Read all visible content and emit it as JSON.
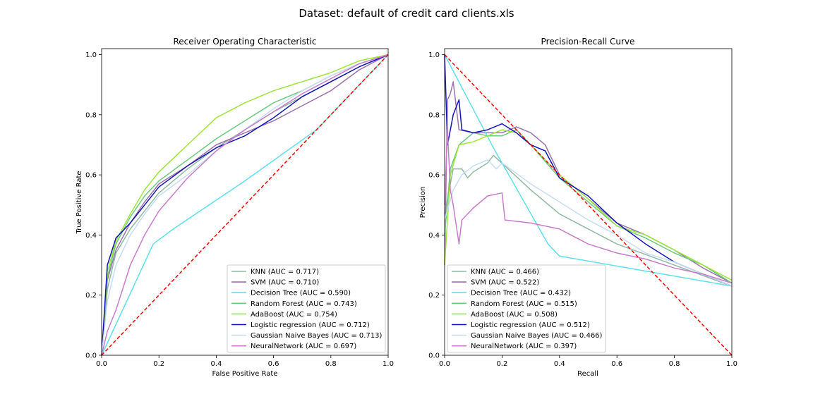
{
  "figure_title": "Dataset: default of credit card clients.xls",
  "colors": {
    "KNN": "#8fb9a2",
    "SVM": "#9a73ad",
    "Decision Tree": "#5ee0ec",
    "Random Forest": "#6cc97e",
    "AdaBoost": "#9fe43a",
    "Logistic regression": "#1414b5",
    "Gaussian Naive Bayes": "#c7dcf2",
    "NeuralNetwork": "#c87ccb",
    "reference": "#ff0000"
  },
  "chart_data": [
    {
      "type": "line",
      "title": "Receiver Operating Characteristic",
      "xlabel": "False Positive Rate",
      "ylabel": "True Positive Rate",
      "xlim": [
        0,
        1
      ],
      "ylim": [
        0,
        1.02
      ],
      "xticks": [
        "0.0",
        "0.2",
        "0.4",
        "0.6",
        "0.8",
        "1.0"
      ],
      "yticks": [
        "0.0",
        "0.2",
        "0.4",
        "0.6",
        "0.8",
        "1.0"
      ],
      "grid": false,
      "legend_position": "lower-right",
      "reference_line": [
        [
          0,
          0
        ],
        [
          1,
          1
        ]
      ],
      "series": [
        {
          "name": "KNN",
          "auc_label": "KNN (AUC = 0.717)",
          "points": [
            [
              0,
              0
            ],
            [
              0.02,
              0.22
            ],
            [
              0.05,
              0.34
            ],
            [
              0.1,
              0.42
            ],
            [
              0.15,
              0.48
            ],
            [
              0.2,
              0.54
            ],
            [
              0.3,
              0.62
            ],
            [
              0.4,
              0.69
            ],
            [
              0.5,
              0.75
            ],
            [
              0.6,
              0.81
            ],
            [
              0.7,
              0.86
            ],
            [
              0.8,
              0.91
            ],
            [
              0.9,
              0.96
            ],
            [
              1,
              1
            ]
          ]
        },
        {
          "name": "SVM",
          "auc_label": "SVM (AUC = 0.710)",
          "points": [
            [
              0,
              0
            ],
            [
              0.02,
              0.25
            ],
            [
              0.05,
              0.35
            ],
            [
              0.1,
              0.44
            ],
            [
              0.15,
              0.51
            ],
            [
              0.2,
              0.57
            ],
            [
              0.3,
              0.63
            ],
            [
              0.4,
              0.7
            ],
            [
              0.5,
              0.74
            ],
            [
              0.6,
              0.78
            ],
            [
              0.7,
              0.83
            ],
            [
              0.8,
              0.88
            ],
            [
              0.9,
              0.95
            ],
            [
              1,
              1
            ]
          ]
        },
        {
          "name": "Decision Tree",
          "auc_label": "Decision Tree (AUC = 0.590)",
          "points": [
            [
              0,
              0
            ],
            [
              0.18,
              0.37
            ],
            [
              0.25,
              0.42
            ],
            [
              0.5,
              0.58
            ],
            [
              0.75,
              0.75
            ],
            [
              1,
              1
            ]
          ]
        },
        {
          "name": "Random Forest",
          "auc_label": "Random Forest (AUC = 0.743)",
          "points": [
            [
              0,
              0
            ],
            [
              0.02,
              0.26
            ],
            [
              0.05,
              0.37
            ],
            [
              0.1,
              0.46
            ],
            [
              0.15,
              0.53
            ],
            [
              0.2,
              0.58
            ],
            [
              0.3,
              0.65
            ],
            [
              0.4,
              0.72
            ],
            [
              0.5,
              0.78
            ],
            [
              0.6,
              0.84
            ],
            [
              0.7,
              0.88
            ],
            [
              0.8,
              0.93
            ],
            [
              0.9,
              0.97
            ],
            [
              1,
              1
            ]
          ]
        },
        {
          "name": "AdaBoost",
          "auc_label": "AdaBoost (AUC = 0.754)",
          "points": [
            [
              0,
              0
            ],
            [
              0.02,
              0.28
            ],
            [
              0.05,
              0.38
            ],
            [
              0.1,
              0.47
            ],
            [
              0.15,
              0.55
            ],
            [
              0.2,
              0.61
            ],
            [
              0.3,
              0.7
            ],
            [
              0.4,
              0.79
            ],
            [
              0.5,
              0.84
            ],
            [
              0.6,
              0.88
            ],
            [
              0.7,
              0.91
            ],
            [
              0.8,
              0.94
            ],
            [
              0.9,
              0.98
            ],
            [
              1,
              1
            ]
          ]
        },
        {
          "name": "Logistic regression",
          "auc_label": "Logistic regression (AUC = 0.712)",
          "points": [
            [
              0,
              0
            ],
            [
              0.02,
              0.3
            ],
            [
              0.05,
              0.39
            ],
            [
              0.1,
              0.44
            ],
            [
              0.15,
              0.5
            ],
            [
              0.2,
              0.56
            ],
            [
              0.3,
              0.63
            ],
            [
              0.4,
              0.69
            ],
            [
              0.5,
              0.73
            ],
            [
              0.6,
              0.79
            ],
            [
              0.7,
              0.86
            ],
            [
              0.8,
              0.91
            ],
            [
              0.9,
              0.96
            ],
            [
              1,
              1
            ]
          ]
        },
        {
          "name": "Gaussian Naive Bayes",
          "auc_label": "Gaussian Naive Bayes (AUC = 0.713)",
          "points": [
            [
              0,
              0
            ],
            [
              0.02,
              0.18
            ],
            [
              0.05,
              0.3
            ],
            [
              0.1,
              0.4
            ],
            [
              0.15,
              0.47
            ],
            [
              0.2,
              0.53
            ],
            [
              0.3,
              0.6
            ],
            [
              0.4,
              0.68
            ],
            [
              0.5,
              0.75
            ],
            [
              0.6,
              0.82
            ],
            [
              0.7,
              0.88
            ],
            [
              0.8,
              0.93
            ],
            [
              0.9,
              0.97
            ],
            [
              1,
              1
            ]
          ]
        },
        {
          "name": "NeuralNetwork",
          "auc_label": "NeuralNetwork (AUC = 0.697)",
          "points": [
            [
              0,
              0
            ],
            [
              0.02,
              0.08
            ],
            [
              0.05,
              0.15
            ],
            [
              0.08,
              0.24
            ],
            [
              0.1,
              0.3
            ],
            [
              0.15,
              0.4
            ],
            [
              0.2,
              0.48
            ],
            [
              0.3,
              0.59
            ],
            [
              0.4,
              0.68
            ],
            [
              0.5,
              0.75
            ],
            [
              0.6,
              0.81
            ],
            [
              0.7,
              0.87
            ],
            [
              0.8,
              0.92
            ],
            [
              0.9,
              0.97
            ],
            [
              1,
              1
            ]
          ]
        }
      ]
    },
    {
      "type": "line",
      "title": "Precision-Recall Curve",
      "xlabel": "Recall",
      "ylabel": "Precision",
      "xlim": [
        0,
        1
      ],
      "ylim": [
        0,
        1.02
      ],
      "xticks": [
        "0.0",
        "0.2",
        "0.4",
        "0.6",
        "0.8",
        "1.0"
      ],
      "yticks": [
        "0.0",
        "0.2",
        "0.4",
        "0.6",
        "0.8",
        "1.0"
      ],
      "grid": false,
      "legend_position": "lower-left",
      "reference_line": [
        [
          0,
          1
        ],
        [
          1,
          0
        ]
      ],
      "series": [
        {
          "name": "KNN",
          "auc_label": "KNN (AUC = 0.466)",
          "points": [
            [
              0,
              0.47
            ],
            [
              0.03,
              0.62
            ],
            [
              0.06,
              0.62
            ],
            [
              0.08,
              0.59
            ],
            [
              0.1,
              0.61
            ],
            [
              0.15,
              0.64
            ],
            [
              0.17,
              0.665
            ],
            [
              0.3,
              0.55
            ],
            [
              0.4,
              0.47
            ],
            [
              0.5,
              0.42
            ],
            [
              0.6,
              0.37
            ],
            [
              0.8,
              0.3
            ],
            [
              1,
              0.23
            ]
          ]
        },
        {
          "name": "SVM",
          "auc_label": "SVM (AUC = 0.522)",
          "points": [
            [
              0,
              0.3
            ],
            [
              0.01,
              0.85
            ],
            [
              0.02,
              0.87
            ],
            [
              0.03,
              0.91
            ],
            [
              0.05,
              0.75
            ],
            [
              0.1,
              0.74
            ],
            [
              0.15,
              0.74
            ],
            [
              0.2,
              0.74
            ],
            [
              0.25,
              0.76
            ],
            [
              0.3,
              0.74
            ],
            [
              0.35,
              0.7
            ],
            [
              0.4,
              0.6
            ],
            [
              0.5,
              0.52
            ],
            [
              0.6,
              0.44
            ],
            [
              0.7,
              0.4
            ],
            [
              0.8,
              0.35
            ],
            [
              0.9,
              0.29
            ],
            [
              1,
              0.24
            ]
          ]
        },
        {
          "name": "Decision Tree",
          "auc_label": "Decision Tree (AUC = 0.432)",
          "points": [
            [
              0,
              1.0
            ],
            [
              0.17,
              0.69
            ],
            [
              0.36,
              0.37
            ],
            [
              0.4,
              0.33
            ],
            [
              1,
              0.23
            ]
          ]
        },
        {
          "name": "Random Forest",
          "auc_label": "Random Forest (AUC = 0.515)",
          "points": [
            [
              0,
              0.4
            ],
            [
              0.02,
              0.62
            ],
            [
              0.05,
              0.7
            ],
            [
              0.1,
              0.74
            ],
            [
              0.15,
              0.73
            ],
            [
              0.2,
              0.73
            ],
            [
              0.25,
              0.75
            ],
            [
              0.3,
              0.7
            ],
            [
              0.4,
              0.59
            ],
            [
              0.5,
              0.51
            ],
            [
              0.6,
              0.43
            ],
            [
              0.7,
              0.39
            ],
            [
              0.8,
              0.34
            ],
            [
              0.9,
              0.3
            ],
            [
              1,
              0.24
            ]
          ]
        },
        {
          "name": "AdaBoost",
          "auc_label": "AdaBoost (AUC = 0.508)",
          "points": [
            [
              0,
              0.3
            ],
            [
              0.02,
              0.6
            ],
            [
              0.05,
              0.7
            ],
            [
              0.1,
              0.71
            ],
            [
              0.15,
              0.73
            ],
            [
              0.2,
              0.75
            ],
            [
              0.25,
              0.74
            ],
            [
              0.3,
              0.7
            ],
            [
              0.4,
              0.6
            ],
            [
              0.5,
              0.52
            ],
            [
              0.6,
              0.43
            ],
            [
              0.7,
              0.4
            ],
            [
              0.8,
              0.35
            ],
            [
              0.9,
              0.3
            ],
            [
              1,
              0.25
            ]
          ]
        },
        {
          "name": "Logistic regression",
          "auc_label": "Logistic regression (AUC = 0.512)",
          "points": [
            [
              0,
              1.0
            ],
            [
              0.01,
              0.7
            ],
            [
              0.03,
              0.8
            ],
            [
              0.05,
              0.85
            ],
            [
              0.06,
              0.75
            ],
            [
              0.1,
              0.74
            ],
            [
              0.15,
              0.75
            ],
            [
              0.2,
              0.77
            ],
            [
              0.25,
              0.74
            ],
            [
              0.3,
              0.7
            ],
            [
              0.35,
              0.68
            ],
            [
              0.4,
              0.59
            ],
            [
              0.5,
              0.53
            ],
            [
              0.6,
              0.44
            ],
            [
              0.7,
              0.37
            ],
            [
              0.8,
              0.31
            ],
            [
              0.9,
              0.27
            ],
            [
              1,
              0.23
            ]
          ]
        },
        {
          "name": "Gaussian Naive Bayes",
          "auc_label": "Gaussian Naive Bayes (AUC = 0.466)",
          "points": [
            [
              0,
              0.45
            ],
            [
              0.03,
              0.55
            ],
            [
              0.06,
              0.6
            ],
            [
              0.1,
              0.63
            ],
            [
              0.15,
              0.65
            ],
            [
              0.18,
              0.62
            ],
            [
              0.2,
              0.64
            ],
            [
              0.3,
              0.57
            ],
            [
              0.4,
              0.51
            ],
            [
              0.5,
              0.45
            ],
            [
              0.6,
              0.4
            ],
            [
              0.7,
              0.34
            ],
            [
              0.8,
              0.31
            ],
            [
              0.9,
              0.27
            ],
            [
              1,
              0.23
            ]
          ]
        },
        {
          "name": "NeuralNetwork",
          "auc_label": "NeuralNetwork (AUC = 0.397)",
          "points": [
            [
              0,
              0.5
            ],
            [
              0.01,
              0.75
            ],
            [
              0.02,
              0.55
            ],
            [
              0.03,
              0.5
            ],
            [
              0.05,
              0.37
            ],
            [
              0.06,
              0.45
            ],
            [
              0.1,
              0.49
            ],
            [
              0.15,
              0.53
            ],
            [
              0.2,
              0.54
            ],
            [
              0.21,
              0.45
            ],
            [
              0.3,
              0.44
            ],
            [
              0.4,
              0.42
            ],
            [
              0.5,
              0.37
            ],
            [
              0.6,
              0.34
            ],
            [
              0.7,
              0.32
            ],
            [
              0.8,
              0.29
            ],
            [
              0.9,
              0.27
            ],
            [
              1,
              0.24
            ]
          ]
        }
      ]
    }
  ]
}
